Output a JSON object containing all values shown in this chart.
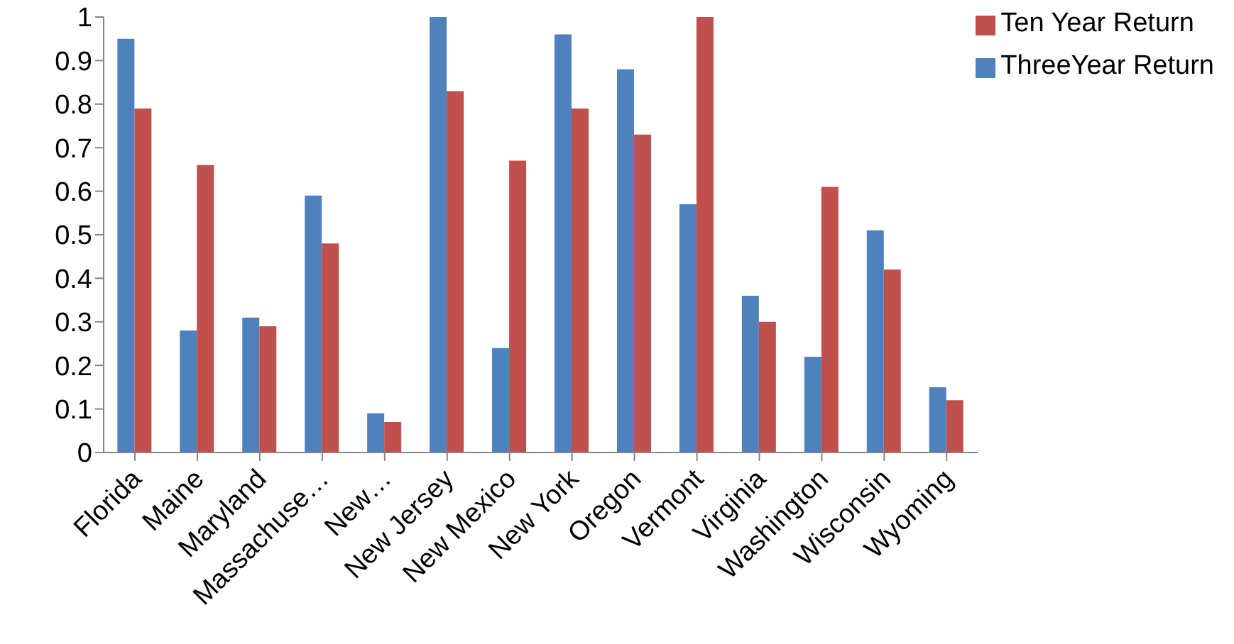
{
  "chart_data": {
    "type": "bar",
    "categories": [
      "Florida",
      "Maine",
      "Maryland",
      "Massachuse…",
      "New…",
      "New Jersey",
      "New Mexico",
      "New York",
      "Oregon",
      "Vermont",
      "Virginia",
      "Washington",
      "Wisconsin",
      "Wyoming"
    ],
    "series": [
      {
        "name": "ThreeYear Return",
        "color": "#4f81bd",
        "values": [
          0.95,
          0.28,
          0.31,
          0.59,
          0.09,
          1.0,
          0.24,
          0.96,
          0.88,
          0.57,
          0.36,
          0.22,
          0.51,
          0.15
        ]
      },
      {
        "name": "Ten Year Return",
        "color": "#c0504d",
        "values": [
          0.79,
          0.66,
          0.29,
          0.48,
          0.07,
          0.83,
          0.67,
          0.79,
          0.73,
          1.0,
          0.3,
          0.61,
          0.42,
          0.12
        ]
      }
    ],
    "ylim": [
      0,
      1
    ],
    "yticks": [
      0,
      0.1,
      0.2,
      0.3,
      0.4,
      0.5,
      0.6,
      0.7,
      0.8,
      0.9,
      1
    ],
    "grid": false,
    "legend": "top right"
  }
}
